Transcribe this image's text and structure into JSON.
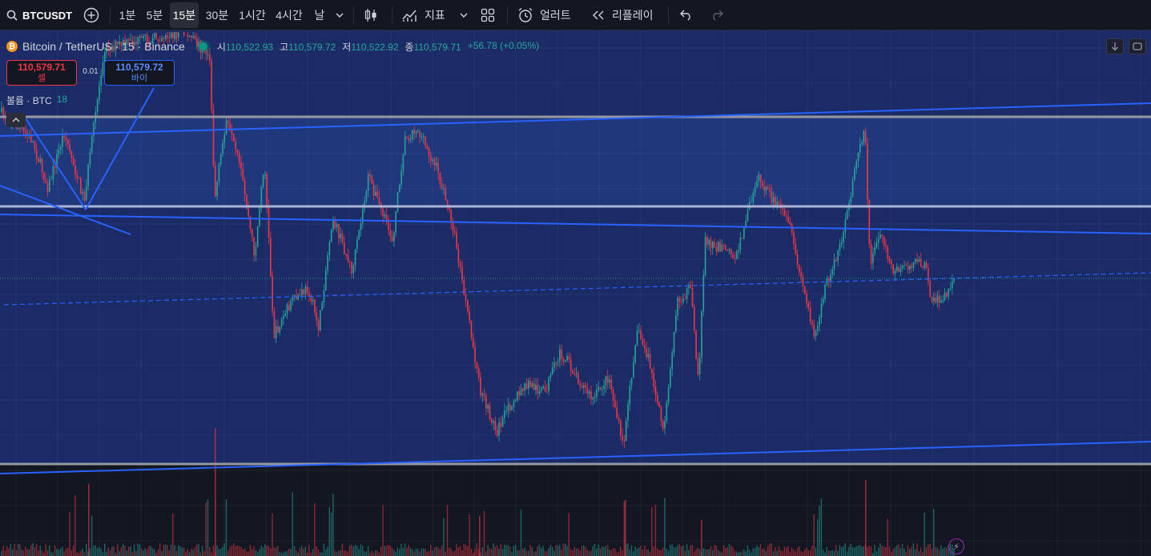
{
  "toolbar": {
    "symbol": "BTCUSDT",
    "timeframes": [
      "1분",
      "5분",
      "15분",
      "30분",
      "1시간",
      "4시간",
      "날"
    ],
    "active_timeframe": "15분",
    "indicators_label": "지표",
    "alert_label": "얼러트",
    "replay_label": "리플레이",
    "icons": [
      "search-icon",
      "add-symbol-icon",
      "chevron-down-icon",
      "candles-icon",
      "indicators-icon",
      "layout-grid-icon",
      "alarm-clock-icon",
      "replay-icon",
      "undo-icon",
      "redo-icon"
    ]
  },
  "legend": {
    "symbol_line": "Bitcoin / TetherUS · 15 · Binance",
    "open_label": "시",
    "open": "110,522.93",
    "high_label": "고",
    "high": "110,579.72",
    "low_label": "저",
    "low": "110,522.92",
    "close_label": "종",
    "close": "110,579.71",
    "change": "+56.78 (+0.05%)",
    "coin_glyph": "₿"
  },
  "trade": {
    "sell_price": "110,579.71",
    "sell_label": "셀",
    "spread": "0.01",
    "buy_price": "110,579.72",
    "buy_label": "바이"
  },
  "volume_legend": {
    "label": "볼륨 · BTC",
    "value": "18"
  },
  "colors": {
    "background": "#131722",
    "panel": "#1b2b66",
    "band": "#20397f",
    "up": "#26a69a",
    "down": "#f23645",
    "trend_line": "#2962ff",
    "level_line": "#9598a1",
    "accent": "#9c27b0"
  },
  "chart_data": {
    "type": "candlestick",
    "symbol": "Bitcoin / TetherUS",
    "interval": "15",
    "exchange": "Binance",
    "last": {
      "open": 110522.93,
      "high": 110579.72,
      "low": 110522.92,
      "close": 110579.71,
      "change": 56.78,
      "change_pct": 0.05
    },
    "volume_last": 18
  }
}
